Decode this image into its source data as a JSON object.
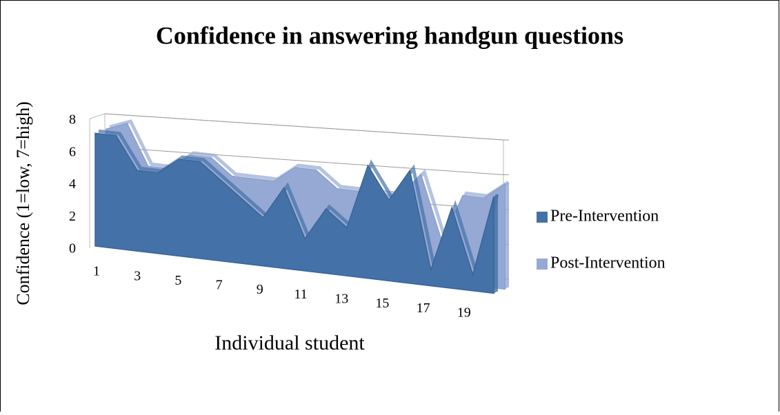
{
  "chart_data": {
    "type": "area3d",
    "title": "Confidence in answering handgun questions",
    "xlabel": "Individual student",
    "ylabel": "Confidence (1=low, 7=high)",
    "categories": [
      1,
      null,
      3,
      null,
      5,
      null,
      7,
      null,
      9,
      null,
      11,
      null,
      13,
      null,
      15,
      null,
      17,
      null,
      19,
      null
    ],
    "series": [
      {
        "name": "Post-Intervention",
        "color": "#95a9d4",
        "values": [
          7,
          7.5,
          5,
          5,
          6,
          6,
          5,
          5,
          5,
          6,
          6,
          5,
          5,
          5,
          5,
          6.5,
          2.5,
          5.5,
          5.5,
          6.5
        ]
      },
      {
        "name": "Pre-Intervention",
        "color": "#4472a8",
        "values": [
          7,
          7,
          5,
          5,
          6,
          6,
          5,
          4,
          3,
          5,
          2,
          4,
          3,
          7,
          5,
          7,
          1,
          5,
          1,
          6
        ]
      }
    ],
    "ylim": [
      0,
      8
    ],
    "yticks": [
      0,
      2,
      4,
      6,
      8
    ],
    "grid": true,
    "legend": "right"
  }
}
